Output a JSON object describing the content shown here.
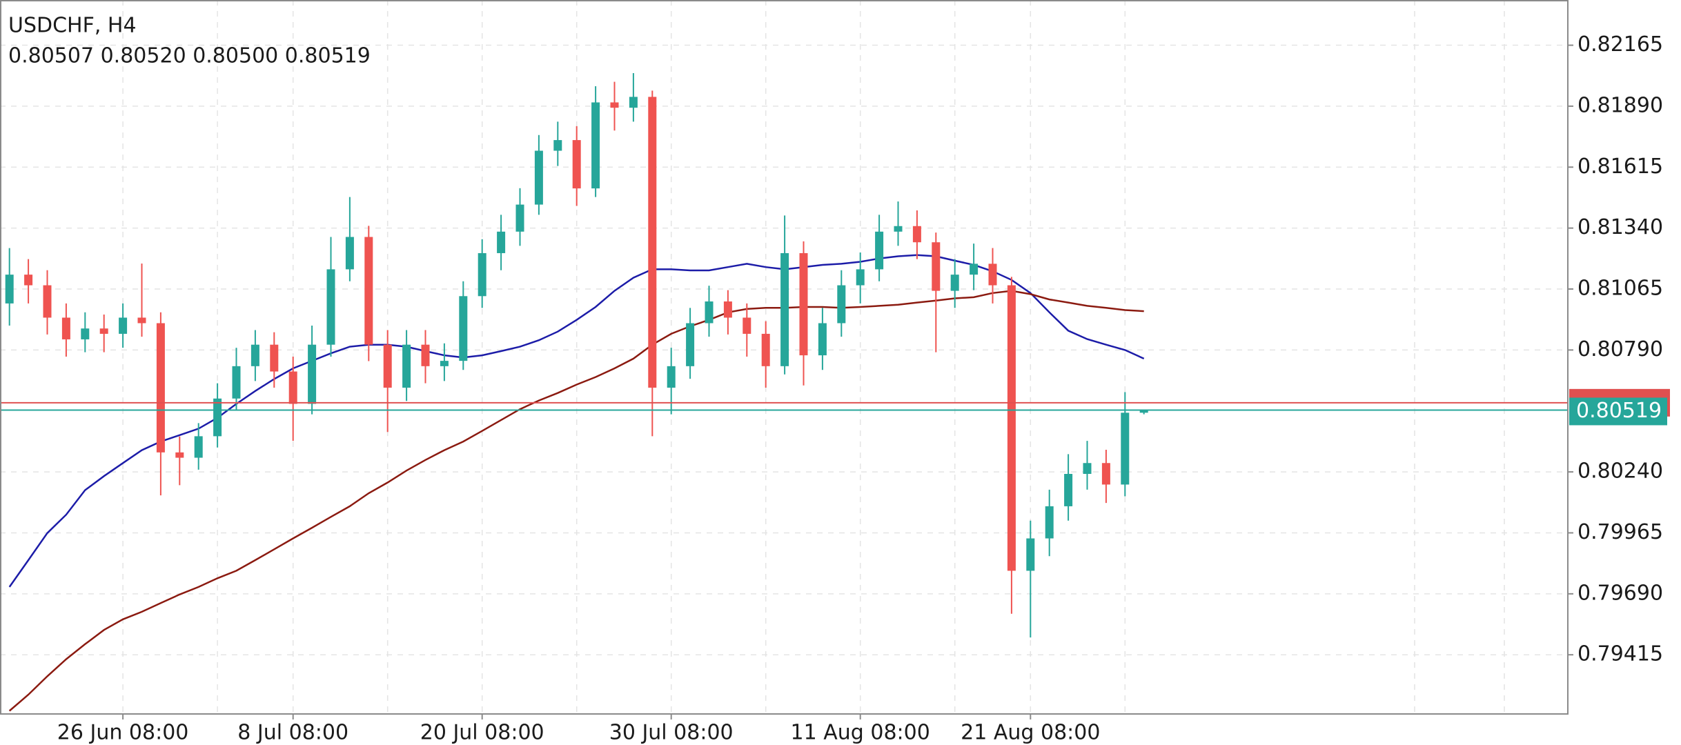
{
  "chart_data": {
    "type": "candlestick",
    "title": "USDCHF, H4",
    "ohlc_text": "0.80507 0.80520 0.80500 0.80519",
    "categories": [
      null,
      null,
      null,
      null,
      null,
      null,
      "26 Jun 08:00",
      null,
      null,
      null,
      null,
      null,
      null,
      null,
      null,
      "8 Jul 08:00",
      null,
      null,
      null,
      null,
      null,
      null,
      null,
      null,
      null,
      "20 Jul 08:00",
      null,
      null,
      null,
      null,
      null,
      null,
      null,
      null,
      null,
      "30 Jul 08:00",
      null,
      null,
      null,
      null,
      null,
      null,
      null,
      null,
      null,
      "11 Aug 08:00",
      null,
      null,
      null,
      null,
      null,
      null,
      null,
      null,
      "21 Aug 08:00",
      null,
      null,
      null,
      null,
      null,
      null
    ],
    "open": [
      0.81,
      0.8113,
      0.81082,
      0.80936,
      0.80838,
      0.80887,
      0.80863,
      0.80936,
      0.80911,
      0.80328,
      0.80304,
      0.80401,
      0.80571,
      0.80717,
      0.80814,
      0.80693,
      0.80547,
      0.80814,
      0.81154,
      0.813,
      0.80814,
      0.8062,
      0.80814,
      0.80717,
      0.80741,
      0.81033,
      0.81227,
      0.81324,
      0.81446,
      0.81689,
      0.81737,
      0.81519,
      0.81907,
      0.81883,
      0.81932,
      0.8062,
      0.80717,
      0.80911,
      0.81009,
      0.80936,
      0.80863,
      0.80717,
      0.81227,
      0.80766,
      0.80911,
      0.81082,
      0.81154,
      0.81324,
      0.81349,
      0.81276,
      0.81057,
      0.8113,
      0.81179,
      0.81082,
      0.79794,
      0.7994,
      0.80085,
      0.80231,
      0.8028,
      0.80183,
      0.80507
    ],
    "high": [
      0.8125,
      0.812,
      0.8115,
      0.81,
      0.8096,
      0.8095,
      0.81,
      0.8118,
      0.8096,
      0.804,
      0.8046,
      0.8064,
      0.808,
      0.8088,
      0.8087,
      0.8076,
      0.809,
      0.813,
      0.8148,
      0.8135,
      0.8088,
      0.8088,
      0.8088,
      0.8082,
      0.811,
      0.8129,
      0.814,
      0.8152,
      0.8176,
      0.8182,
      0.818,
      0.8198,
      0.82,
      0.82039,
      0.8196,
      0.808,
      0.8098,
      0.8108,
      0.8106,
      0.81,
      0.8092,
      0.81397,
      0.8128,
      0.8098,
      0.8115,
      0.8123,
      0.814,
      0.8146,
      0.8142,
      0.8132,
      0.812,
      0.8127,
      0.8125,
      0.8112,
      0.8002,
      0.8016,
      0.8032,
      0.8038,
      0.8034,
      0.806,
      0.8052
    ],
    "low": [
      0.809,
      0.81,
      0.8086,
      0.8076,
      0.8078,
      0.8078,
      0.808,
      0.8085,
      0.80134,
      0.8018,
      0.8025,
      0.8035,
      0.8052,
      0.8065,
      0.8062,
      0.8038,
      0.805,
      0.8076,
      0.811,
      0.8074,
      0.8042,
      0.8056,
      0.8064,
      0.8065,
      0.807,
      0.8098,
      0.8115,
      0.8126,
      0.814,
      0.8162,
      0.8144,
      0.8148,
      0.8178,
      0.8182,
      0.80401,
      0.805,
      0.8066,
      0.8085,
      0.8086,
      0.8076,
      0.8062,
      0.8068,
      0.8063,
      0.807,
      0.8085,
      0.81,
      0.811,
      0.8126,
      0.812,
      0.8078,
      0.8098,
      0.8106,
      0.81,
      0.796,
      0.79493,
      0.7986,
      0.8002,
      0.8016,
      0.801,
      0.8013,
      0.805
    ],
    "close": [
      0.8113,
      0.81082,
      0.80936,
      0.80838,
      0.80887,
      0.80863,
      0.80936,
      0.80911,
      0.80328,
      0.80304,
      0.80401,
      0.80571,
      0.80717,
      0.80814,
      0.80693,
      0.80547,
      0.80814,
      0.81154,
      0.813,
      0.80814,
      0.8062,
      0.80814,
      0.80717,
      0.80741,
      0.81033,
      0.81227,
      0.81324,
      0.81446,
      0.81689,
      0.81737,
      0.81519,
      0.81907,
      0.81883,
      0.81932,
      0.8062,
      0.80717,
      0.80911,
      0.81009,
      0.80936,
      0.80863,
      0.80717,
      0.81227,
      0.80766,
      0.80911,
      0.81082,
      0.81154,
      0.81324,
      0.81349,
      0.81276,
      0.81057,
      0.8113,
      0.81179,
      0.81082,
      0.79794,
      0.7994,
      0.80085,
      0.80231,
      0.8028,
      0.80183,
      0.80507,
      0.80519
    ],
    "up_color": "#26a69a",
    "down_color": "#ef5350",
    "series": [
      {
        "color": "#1c1ca8",
        "values": [
          0.79721,
          0.79842,
          0.79964,
          0.80047,
          0.80158,
          0.80221,
          0.8028,
          0.80338,
          0.80377,
          0.80406,
          0.80435,
          0.80484,
          0.80547,
          0.80605,
          0.80659,
          0.80707,
          0.80741,
          0.80775,
          0.80805,
          0.80814,
          0.80814,
          0.80805,
          0.80785,
          0.80766,
          0.80756,
          0.80766,
          0.80785,
          0.80805,
          0.80834,
          0.80873,
          0.80926,
          0.80984,
          0.81057,
          0.81116,
          0.81154,
          0.81154,
          0.81149,
          0.81149,
          0.81164,
          0.81179,
          0.81164,
          0.81154,
          0.81164,
          0.81174,
          0.81179,
          0.81188,
          0.81203,
          0.81213,
          0.81218,
          0.81213,
          0.81193,
          0.81174,
          0.81145,
          0.81106,
          0.81047,
          0.8096,
          0.80877,
          0.80839,
          0.80814,
          0.8079,
          0.80751
        ]
      },
      {
        "color": "#8b1a10",
        "values": [
          0.79162,
          0.79235,
          0.79318,
          0.79395,
          0.79463,
          0.79527,
          0.79575,
          0.79609,
          0.79648,
          0.79687,
          0.79721,
          0.7976,
          0.79794,
          0.79842,
          0.79891,
          0.7994,
          0.79988,
          0.80037,
          0.80085,
          0.80144,
          0.80192,
          0.80246,
          0.80294,
          0.80338,
          0.80377,
          0.80425,
          0.80474,
          0.80523,
          0.80562,
          0.80596,
          0.80634,
          0.80668,
          0.80707,
          0.80751,
          0.80814,
          0.80863,
          0.80897,
          0.80926,
          0.8096,
          0.80975,
          0.8098,
          0.8098,
          0.80984,
          0.80984,
          0.8098,
          0.80984,
          0.80989,
          0.80994,
          0.81004,
          0.81013,
          0.81023,
          0.81028,
          0.81047,
          0.81057,
          0.81042,
          0.81018,
          0.81004,
          0.80989,
          0.8098,
          0.8097,
          0.80965
        ]
      }
    ],
    "ask_line": {
      "value": 0.80552,
      "color": "#e05050"
    },
    "bid_line": {
      "value": 0.80519,
      "label": "0.80519",
      "color": "#26a69a"
    },
    "ylim": [
      0.79148,
      0.82369
    ],
    "yticks": [
      0.82165,
      {
        "value": 0.8189,
        "label": "0.81890"
      },
      0.81615,
      {
        "value": 0.8134,
        "label": "0.81340"
      },
      0.81065,
      {
        "value": 0.8079,
        "label": "0.80790"
      },
      {
        "value": 0.8024,
        "label": "0.80240"
      },
      0.79965,
      {
        "value": 0.7969,
        "label": "0.79690"
      },
      0.79415
    ],
    "grid": true
  }
}
